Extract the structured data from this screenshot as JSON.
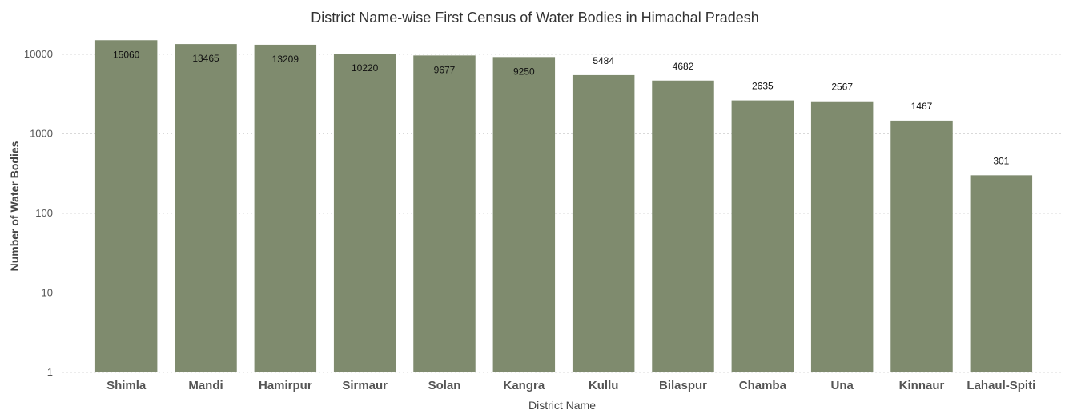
{
  "chart_data": {
    "type": "bar",
    "title": "District Name-wise First Census of Water Bodies in Himachal Pradesh",
    "xlabel": "District Name",
    "ylabel": "Number of Water Bodies",
    "scale": "log",
    "ylim": [
      1,
      20000
    ],
    "yticks": [
      1,
      10,
      100,
      1000,
      10000
    ],
    "ytick_labels": [
      "1",
      "10",
      "100",
      "1000",
      "10000"
    ],
    "categories": [
      "Shimla",
      "Mandi",
      "Hamirpur",
      "Sirmaur",
      "Solan",
      "Kangra",
      "Kullu",
      "Bilaspur",
      "Chamba",
      "Una",
      "Kinnaur",
      "Lahaul-Spiti"
    ],
    "values": [
      15060,
      13465,
      13209,
      10220,
      9677,
      9250,
      5484,
      4682,
      2635,
      2567,
      1467,
      301
    ],
    "data_labels": [
      "15060",
      "13465",
      "13209",
      "10220",
      "9677",
      "9250",
      "5484",
      "4682",
      "2635",
      "2567",
      "1467",
      "301"
    ],
    "bar_color": "#7f8b6e",
    "grid": true,
    "legend": "none"
  }
}
